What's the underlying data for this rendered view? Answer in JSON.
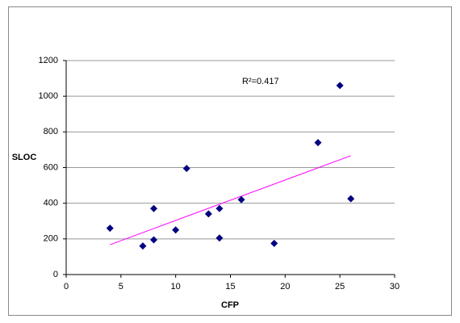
{
  "chart_data": {
    "type": "scatter",
    "x": [
      4,
      7,
      8,
      8,
      10,
      11,
      13,
      14,
      14,
      16,
      19,
      23,
      25,
      26
    ],
    "values": [
      260,
      160,
      370,
      195,
      250,
      595,
      340,
      370,
      205,
      420,
      175,
      740,
      1060,
      425
    ],
    "color": "#000080",
    "x_label": "CFP",
    "y_label": "SLOC",
    "annotation": "R²=0.417",
    "trendline": true,
    "trendline_color": "#ff00ff",
    "xlim": [
      0,
      30
    ],
    "xticks": [
      0,
      5,
      10,
      15,
      20,
      25,
      30
    ],
    "ylim": [
      0,
      1200
    ],
    "yticks": [
      0,
      200,
      400,
      600,
      800,
      1000,
      1200
    ],
    "grid": true
  }
}
